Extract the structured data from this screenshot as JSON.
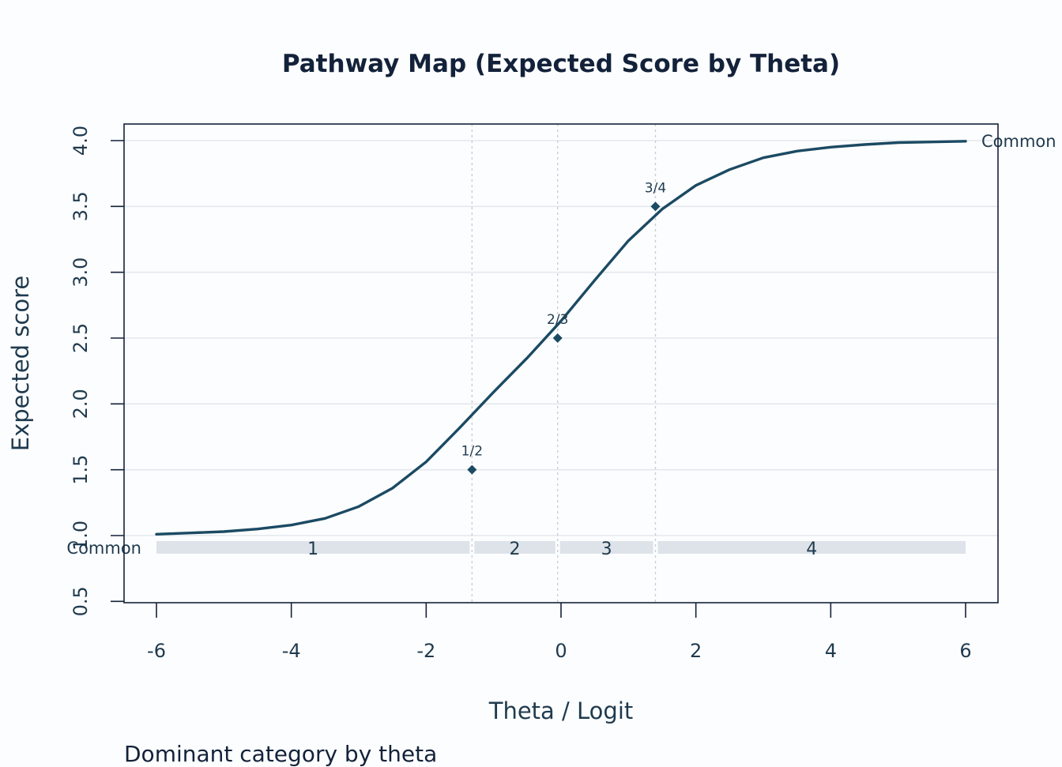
{
  "chart_data": {
    "type": "line",
    "title": "Pathway Map (Expected Score by Theta)",
    "xlabel": "Theta / Logit",
    "ylabel": "Expected score",
    "xlim": [
      -6.25,
      6.25
    ],
    "ylim": [
      0.5,
      4.1
    ],
    "x_ticks": [
      "-6",
      "-4",
      "-2",
      "0",
      "2",
      "4",
      "6"
    ],
    "y_ticks": [
      "0.5",
      "1.0",
      "1.5",
      "2.0",
      "2.5",
      "3.0",
      "3.5",
      "4.0"
    ],
    "grid": "horizontal",
    "series": [
      {
        "label": "Common",
        "x": [
          -6,
          -5.5,
          -5,
          -4.5,
          -4,
          -3.5,
          -3,
          -2.5,
          -2,
          -1.5,
          -1,
          -0.5,
          0,
          0.5,
          1,
          1.5,
          2,
          2.5,
          3,
          3.5,
          4,
          4.5,
          5,
          5.5,
          6
        ],
        "y": [
          1.01,
          1.02,
          1.03,
          1.05,
          1.08,
          1.13,
          1.22,
          1.36,
          1.56,
          1.82,
          2.09,
          2.35,
          2.63,
          2.94,
          3.24,
          3.48,
          3.66,
          3.78,
          3.87,
          3.92,
          3.95,
          3.97,
          3.985,
          3.99,
          3.995
        ]
      }
    ],
    "thresholds": [
      {
        "label": "1/2",
        "theta": -1.32,
        "score": 1.5
      },
      {
        "label": "2/3",
        "theta": -0.05,
        "score": 2.5
      },
      {
        "label": "3/4",
        "theta": 1.4,
        "score": 3.5
      }
    ],
    "dominant_band": {
      "label": "Common",
      "score": 0.91,
      "segments": [
        {
          "category": "1",
          "from": -6,
          "to": -1.32
        },
        {
          "category": "2",
          "from": -1.32,
          "to": -0.05
        },
        {
          "category": "3",
          "from": -0.05,
          "to": 1.4
        },
        {
          "category": "4",
          "from": 1.4,
          "to": 6
        }
      ]
    },
    "colors": {
      "curve": "#1b4a63",
      "band": "#dde3e8",
      "grid": "#e4e8ec",
      "threshold_line": "#c8ced6",
      "text": "#1f3a4e",
      "title": "#13223a"
    }
  },
  "footer": {
    "note": "Dominant category by theta"
  }
}
